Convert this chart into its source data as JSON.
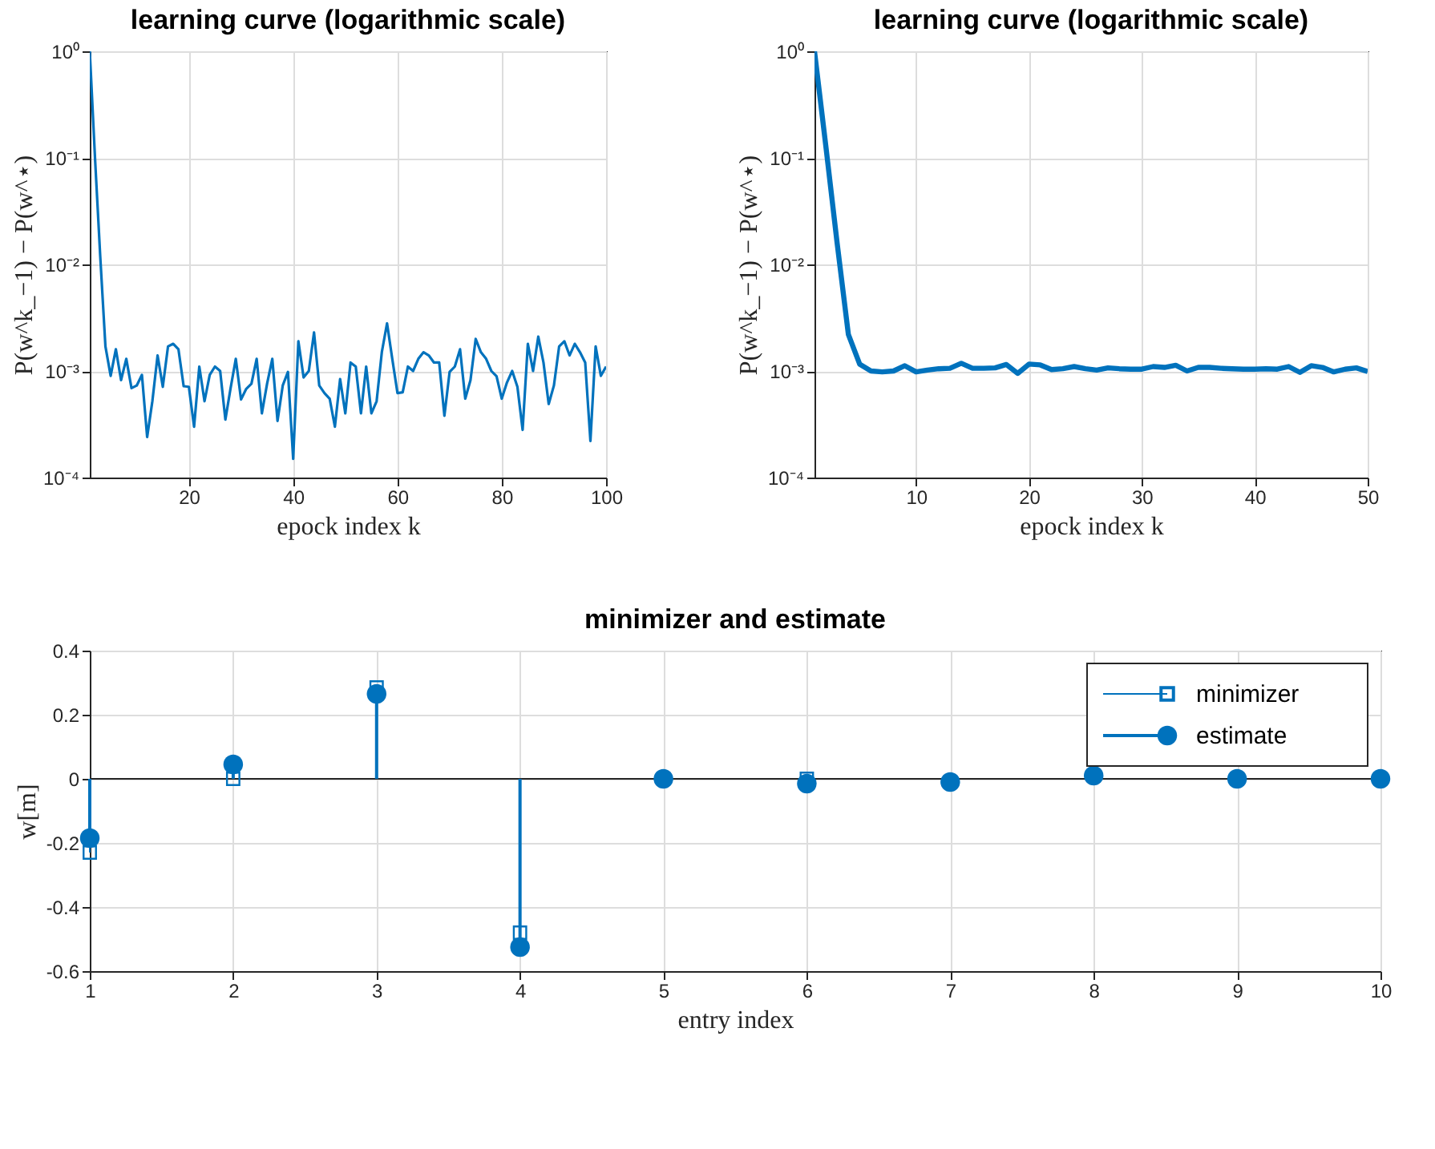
{
  "chart_data": [
    {
      "type": "line",
      "title": "learning curve (logarithmic scale)",
      "xlabel": "epock index k",
      "ylabel": "P(w^k_−1) − P(w^⋆)",
      "log": "y",
      "grid": true,
      "line_style": "solid",
      "x": [
        1,
        2,
        3,
        4,
        5,
        6,
        7,
        8,
        9,
        10,
        11,
        12,
        13,
        14,
        15,
        16,
        17,
        18,
        19,
        20,
        21,
        22,
        23,
        24,
        25,
        26,
        27,
        28,
        29,
        30,
        31,
        32,
        33,
        34,
        35,
        36,
        37,
        38,
        39,
        40,
        41,
        42,
        43,
        44,
        45,
        46,
        47,
        48,
        49,
        50,
        51,
        52,
        53,
        54,
        55,
        56,
        57,
        58,
        59,
        60,
        61,
        62,
        63,
        64,
        65,
        66,
        67,
        68,
        69,
        70,
        71,
        72,
        73,
        74,
        75,
        76,
        77,
        78,
        79,
        80,
        81,
        82,
        83,
        84,
        85,
        86,
        87,
        88,
        89,
        90,
        91,
        92,
        93,
        94,
        95,
        96,
        97,
        98,
        99,
        100
      ],
      "series": [
        {
          "color": "#0072bd",
          "values": [
            1,
            0.1,
            0.012,
            0.0017,
            0.0009,
            0.0016,
            0.00082,
            0.0013,
            0.00069,
            0.00073,
            0.00092,
            0.00024,
            0.00052,
            0.0014,
            0.00071,
            0.0017,
            0.0018,
            0.0016,
            0.00072,
            0.00071,
            0.0003,
            0.0011,
            0.00052,
            0.00092,
            0.0011,
            0.001,
            0.00035,
            0.00069,
            0.0013,
            0.00054,
            0.00068,
            0.00076,
            0.0013,
            0.0004,
            0.00076,
            0.0013,
            0.00034,
            0.00073,
            0.00098,
            0.00015,
            0.0019,
            0.00087,
            0.001,
            0.0023,
            0.00073,
            0.00062,
            0.00055,
            0.0003,
            0.00084,
            0.0004,
            0.0012,
            0.0011,
            0.0004,
            0.0011,
            0.0004,
            0.00052,
            0.0015,
            0.0028,
            0.0013,
            0.00062,
            0.00063,
            0.0011,
            0.001,
            0.0013,
            0.0015,
            0.0014,
            0.0012,
            0.0012,
            0.00038,
            0.00098,
            0.0011,
            0.0016,
            0.00055,
            0.00082,
            0.002,
            0.0015,
            0.0013,
            0.001,
            0.00089,
            0.00055,
            0.00078,
            0.001,
            0.00071,
            0.00028,
            0.0018,
            0.001,
            0.0021,
            0.0012,
            0.00049,
            0.00073,
            0.0017,
            0.0019,
            0.0014,
            0.0018,
            0.0015,
            0.0012,
            0.00022,
            0.0017,
            0.0009,
            0.0011
          ]
        }
      ],
      "xlim": [
        1,
        100
      ],
      "xticks": [
        20,
        40,
        60,
        80,
        100
      ],
      "ylim": [
        0.0001,
        1
      ],
      "yticks": [
        {
          "value": 0.0001,
          "label": "10⁻⁴"
        },
        {
          "value": 0.001,
          "label": "10⁻³"
        },
        {
          "value": 0.01,
          "label": "10⁻²"
        },
        {
          "value": 0.1,
          "label": "10⁻¹"
        },
        {
          "value": 1,
          "label": "10⁰"
        }
      ]
    },
    {
      "type": "line",
      "title": "learning curve (logarithmic scale)",
      "xlabel": "epock index k",
      "ylabel": "P(w^k_−1) − P(w^⋆)",
      "log": "y",
      "grid": true,
      "line_style": "solid",
      "x": [
        1,
        2,
        3,
        4,
        5,
        6,
        7,
        8,
        9,
        10,
        11,
        12,
        13,
        14,
        15,
        16,
        17,
        18,
        19,
        20,
        21,
        22,
        23,
        24,
        25,
        26,
        27,
        28,
        29,
        30,
        31,
        32,
        33,
        34,
        35,
        36,
        37,
        38,
        39,
        40,
        41,
        42,
        43,
        44,
        45,
        46,
        47,
        48,
        49,
        50
      ],
      "series": [
        {
          "color": "#0072bd",
          "values": [
            1,
            0.13,
            0.016,
            0.0022,
            0.00116,
            0.001,
            0.00098,
            0.001,
            0.00112,
            0.00098,
            0.00102,
            0.00105,
            0.00106,
            0.00118,
            0.00106,
            0.00106,
            0.00107,
            0.00115,
            0.00095,
            0.00116,
            0.00114,
            0.00103,
            0.00105,
            0.0011,
            0.00105,
            0.00102,
            0.00107,
            0.00105,
            0.00104,
            0.00104,
            0.0011,
            0.00108,
            0.00113,
            0.001,
            0.00108,
            0.00108,
            0.00106,
            0.00105,
            0.00104,
            0.00104,
            0.00105,
            0.00104,
            0.0011,
            0.00097,
            0.00112,
            0.00108,
            0.00098,
            0.00104,
            0.00107,
            0.00099
          ]
        }
      ],
      "xlim": [
        1,
        50
      ],
      "xticks": [
        10,
        20,
        30,
        40,
        50
      ],
      "ylim": [
        0.0001,
        1
      ],
      "yticks": [
        {
          "value": 0.0001,
          "label": "10⁻⁴"
        },
        {
          "value": 0.001,
          "label": "10⁻³"
        },
        {
          "value": 0.01,
          "label": "10⁻²"
        },
        {
          "value": 0.1,
          "label": "10⁻¹"
        },
        {
          "value": 1,
          "label": "10⁰"
        }
      ]
    },
    {
      "type": "lollipop",
      "title": "minimizer and estimate",
      "xlabel": "entry index",
      "ylabel": "w[m]",
      "grid": true,
      "legend": "top right",
      "x": [
        1,
        2,
        3,
        4,
        5,
        6,
        7,
        8,
        9,
        10
      ],
      "series": [
        {
          "name": "minimizer",
          "color": "#0072bd",
          "marker": "square",
          "values": [
            -0.23,
            0.0,
            0.285,
            -0.48,
            null,
            0.0,
            null,
            null,
            null,
            null
          ]
        },
        {
          "name": "estimate",
          "color": "#0072bd",
          "marker": "circle",
          "values": [
            -0.185,
            0.045,
            0.265,
            -0.525,
            0.0,
            -0.015,
            -0.01,
            0.01,
            0.0,
            0.0
          ]
        }
      ],
      "xlim": [
        1,
        10
      ],
      "xticks": [
        1,
        2,
        3,
        4,
        5,
        6,
        7,
        8,
        9,
        10
      ],
      "ylim": [
        -0.6,
        0.4
      ],
      "yticks": [
        -0.6,
        -0.4,
        -0.2,
        0,
        0.2,
        0.4
      ]
    }
  ]
}
